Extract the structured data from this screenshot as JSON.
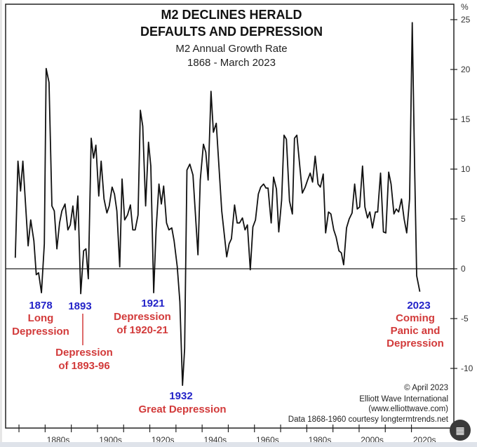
{
  "chart_data": {
    "type": "line",
    "title": "M2 DECLINES HERALD DEFAULTS AND DEPRESSION",
    "title_lines": [
      "M2 DECLINES HERALD",
      "DEFAULTS AND DEPRESSION"
    ],
    "subtitle_lines": [
      "M2 Annual Growth Rate",
      "1868 - March 2023"
    ],
    "ylabel": "%",
    "ylim": [
      -12,
      26
    ],
    "xlim": [
      1866,
      2026
    ],
    "yticks": [
      25,
      20,
      15,
      10,
      5,
      0,
      -5,
      -10
    ],
    "xtick_years": [
      1870,
      1880,
      1890,
      1900,
      1910,
      1920,
      1930,
      1940,
      1950,
      1960,
      1970,
      1980,
      1990,
      2000,
      2010,
      2020
    ],
    "xlabels": [
      {
        "label": "1880s",
        "at": 1885
      },
      {
        "label": "1900s",
        "at": 1905
      },
      {
        "label": "1920s",
        "at": 1925
      },
      {
        "label": "1940s",
        "at": 1945
      },
      {
        "label": "1960s",
        "at": 1965
      },
      {
        "label": "1980s",
        "at": 1985
      },
      {
        "label": "2000s",
        "at": 2005
      },
      {
        "label": "2020s",
        "at": 2025
      }
    ],
    "zero_line": true,
    "grid": false,
    "line_color": "#111111",
    "series": [
      {
        "points": [
          [
            1868.6,
            1.1
          ],
          [
            1869.6,
            10.8
          ],
          [
            1870.6,
            7.8
          ],
          [
            1871.5,
            10.8
          ],
          [
            1873.5,
            2.3
          ],
          [
            1874.5,
            4.9
          ],
          [
            1875.7,
            2.8
          ],
          [
            1876.6,
            -0.6
          ],
          [
            1877.5,
            -0.4
          ],
          [
            1878.6,
            -2.4
          ],
          [
            1879.7,
            2.5
          ],
          [
            1880.4,
            20.1
          ],
          [
            1881.5,
            18.7
          ],
          [
            1882.6,
            6.3
          ],
          [
            1883.5,
            5.8
          ],
          [
            1884.5,
            2.0
          ],
          [
            1885.5,
            4.6
          ],
          [
            1886.4,
            5.8
          ],
          [
            1887.6,
            6.5
          ],
          [
            1888.7,
            3.9
          ],
          [
            1889.6,
            4.4
          ],
          [
            1890.6,
            6.3
          ],
          [
            1891.5,
            3.9
          ],
          [
            1892.5,
            7.3
          ],
          [
            1893.6,
            -2.5
          ],
          [
            1894.7,
            1.8
          ],
          [
            1895.6,
            2.0
          ],
          [
            1896.5,
            -1.0
          ],
          [
            1897.6,
            13.1
          ],
          [
            1898.5,
            11.1
          ],
          [
            1899.4,
            12.4
          ],
          [
            1900.5,
            7.3
          ],
          [
            1901.4,
            10.8
          ],
          [
            1902.5,
            7.0
          ],
          [
            1903.6,
            5.6
          ],
          [
            1904.5,
            6.3
          ],
          [
            1905.6,
            8.2
          ],
          [
            1906.5,
            7.5
          ],
          [
            1907.4,
            5.8
          ],
          [
            1908.5,
            0.2
          ],
          [
            1909.4,
            9.0
          ],
          [
            1910.4,
            4.9
          ],
          [
            1911.5,
            5.4
          ],
          [
            1912.6,
            6.4
          ],
          [
            1913.5,
            3.9
          ],
          [
            1914.4,
            3.9
          ],
          [
            1915.5,
            5.4
          ],
          [
            1916.4,
            15.9
          ],
          [
            1917.3,
            14.3
          ],
          [
            1918.4,
            6.3
          ],
          [
            1919.5,
            12.7
          ],
          [
            1920.4,
            10.3
          ],
          [
            1921.5,
            -2.4
          ],
          [
            1922.4,
            3.9
          ],
          [
            1923.5,
            8.5
          ],
          [
            1924.4,
            6.5
          ],
          [
            1925.3,
            8.3
          ],
          [
            1926.4,
            4.6
          ],
          [
            1927.3,
            3.9
          ],
          [
            1928.4,
            4.1
          ],
          [
            1929.3,
            2.8
          ],
          [
            1930.5,
            0.2
          ],
          [
            1931.5,
            -3.3
          ],
          [
            1932.5,
            -11.7
          ],
          [
            1933.3,
            -8.0
          ],
          [
            1934.2,
            9.9
          ],
          [
            1935.3,
            10.5
          ],
          [
            1936.5,
            9.4
          ],
          [
            1938.4,
            1.4
          ],
          [
            1939.3,
            8.9
          ],
          [
            1940.5,
            12.5
          ],
          [
            1941.4,
            11.7
          ],
          [
            1942.3,
            8.9
          ],
          [
            1943.4,
            17.8
          ],
          [
            1944.3,
            13.7
          ],
          [
            1945.4,
            14.6
          ],
          [
            1947.5,
            5.8
          ],
          [
            1949.4,
            1.2
          ],
          [
            1950.3,
            2.5
          ],
          [
            1951.2,
            3.0
          ],
          [
            1952.4,
            6.4
          ],
          [
            1953.4,
            4.6
          ],
          [
            1954.3,
            4.6
          ],
          [
            1955.4,
            5.1
          ],
          [
            1956.4,
            3.9
          ],
          [
            1957.3,
            4.4
          ],
          [
            1958.4,
            -0.1
          ],
          [
            1959.4,
            4.2
          ],
          [
            1960.4,
            4.9
          ],
          [
            1961.5,
            7.5
          ],
          [
            1962.4,
            8.2
          ],
          [
            1963.5,
            8.5
          ],
          [
            1964.4,
            8.1
          ],
          [
            1965.2,
            8.1
          ],
          [
            1966.4,
            4.6
          ],
          [
            1967.3,
            9.2
          ],
          [
            1968.4,
            8.0
          ],
          [
            1969.3,
            3.7
          ],
          [
            1970.4,
            6.9
          ],
          [
            1971.3,
            13.4
          ],
          [
            1972.2,
            13.0
          ],
          [
            1973.4,
            6.8
          ],
          [
            1974.5,
            5.5
          ],
          [
            1975.3,
            13.1
          ],
          [
            1976.2,
            13.4
          ],
          [
            1978.3,
            7.6
          ],
          [
            1979.4,
            8.2
          ],
          [
            1980.3,
            8.9
          ],
          [
            1981.3,
            9.6
          ],
          [
            1982.2,
            8.7
          ],
          [
            1983.2,
            11.3
          ],
          [
            1984.3,
            8.5
          ],
          [
            1985.2,
            8.2
          ],
          [
            1986.3,
            9.5
          ],
          [
            1987.2,
            3.6
          ],
          [
            1988.3,
            5.7
          ],
          [
            1989.2,
            5.5
          ],
          [
            1990.3,
            3.9
          ],
          [
            1991.2,
            3.2
          ],
          [
            1992.3,
            1.8
          ],
          [
            1993.2,
            1.6
          ],
          [
            1994.1,
            0.4
          ],
          [
            1995.2,
            4.1
          ],
          [
            1996.2,
            5.0
          ],
          [
            1997.3,
            5.6
          ],
          [
            1998.3,
            8.5
          ],
          [
            1999.3,
            6.0
          ],
          [
            2000.2,
            6.2
          ],
          [
            2001.3,
            10.3
          ],
          [
            2002.2,
            6.2
          ],
          [
            2003.2,
            5.1
          ],
          [
            2004.1,
            5.7
          ],
          [
            2005.1,
            4.1
          ],
          [
            2006.2,
            5.7
          ],
          [
            2007.1,
            5.7
          ],
          [
            2008.2,
            9.6
          ],
          [
            2009.3,
            3.7
          ],
          [
            2010.2,
            3.6
          ],
          [
            2011.3,
            9.7
          ],
          [
            2012.2,
            8.5
          ],
          [
            2013.3,
            5.5
          ],
          [
            2014.2,
            6.0
          ],
          [
            2015.1,
            5.7
          ],
          [
            2016.2,
            7.0
          ],
          [
            2017.2,
            5.0
          ],
          [
            2018.2,
            3.6
          ],
          [
            2019.3,
            7.0
          ],
          [
            2020.3,
            24.7
          ],
          [
            2021.2,
            10.5
          ],
          [
            2022.0,
            -0.7
          ],
          [
            2023.2,
            -2.3
          ]
        ]
      }
    ],
    "annotations": [
      {
        "year": "1878",
        "text": [
          "Long",
          "Depression"
        ]
      },
      {
        "year": "1893",
        "text": [
          "Depression",
          "of 1893-96"
        ]
      },
      {
        "year": "1921",
        "text": [
          "Depression",
          "of 1920-21"
        ]
      },
      {
        "year": "1932",
        "text": [
          "Great Depression"
        ]
      },
      {
        "year": "2023",
        "text": [
          "Coming",
          "Panic and",
          "Depression"
        ]
      }
    ],
    "annotation_colors": {
      "year": "#2323c8",
      "text": "#d23a3a"
    },
    "credits": [
      "© April 2023",
      "Elliott Wave International",
      "(www.elliottwave.com)",
      "Data 1868-1960 courtesy longtermtrends.net"
    ]
  },
  "overlay": {
    "lens_icon": "lens-scan-icon"
  }
}
